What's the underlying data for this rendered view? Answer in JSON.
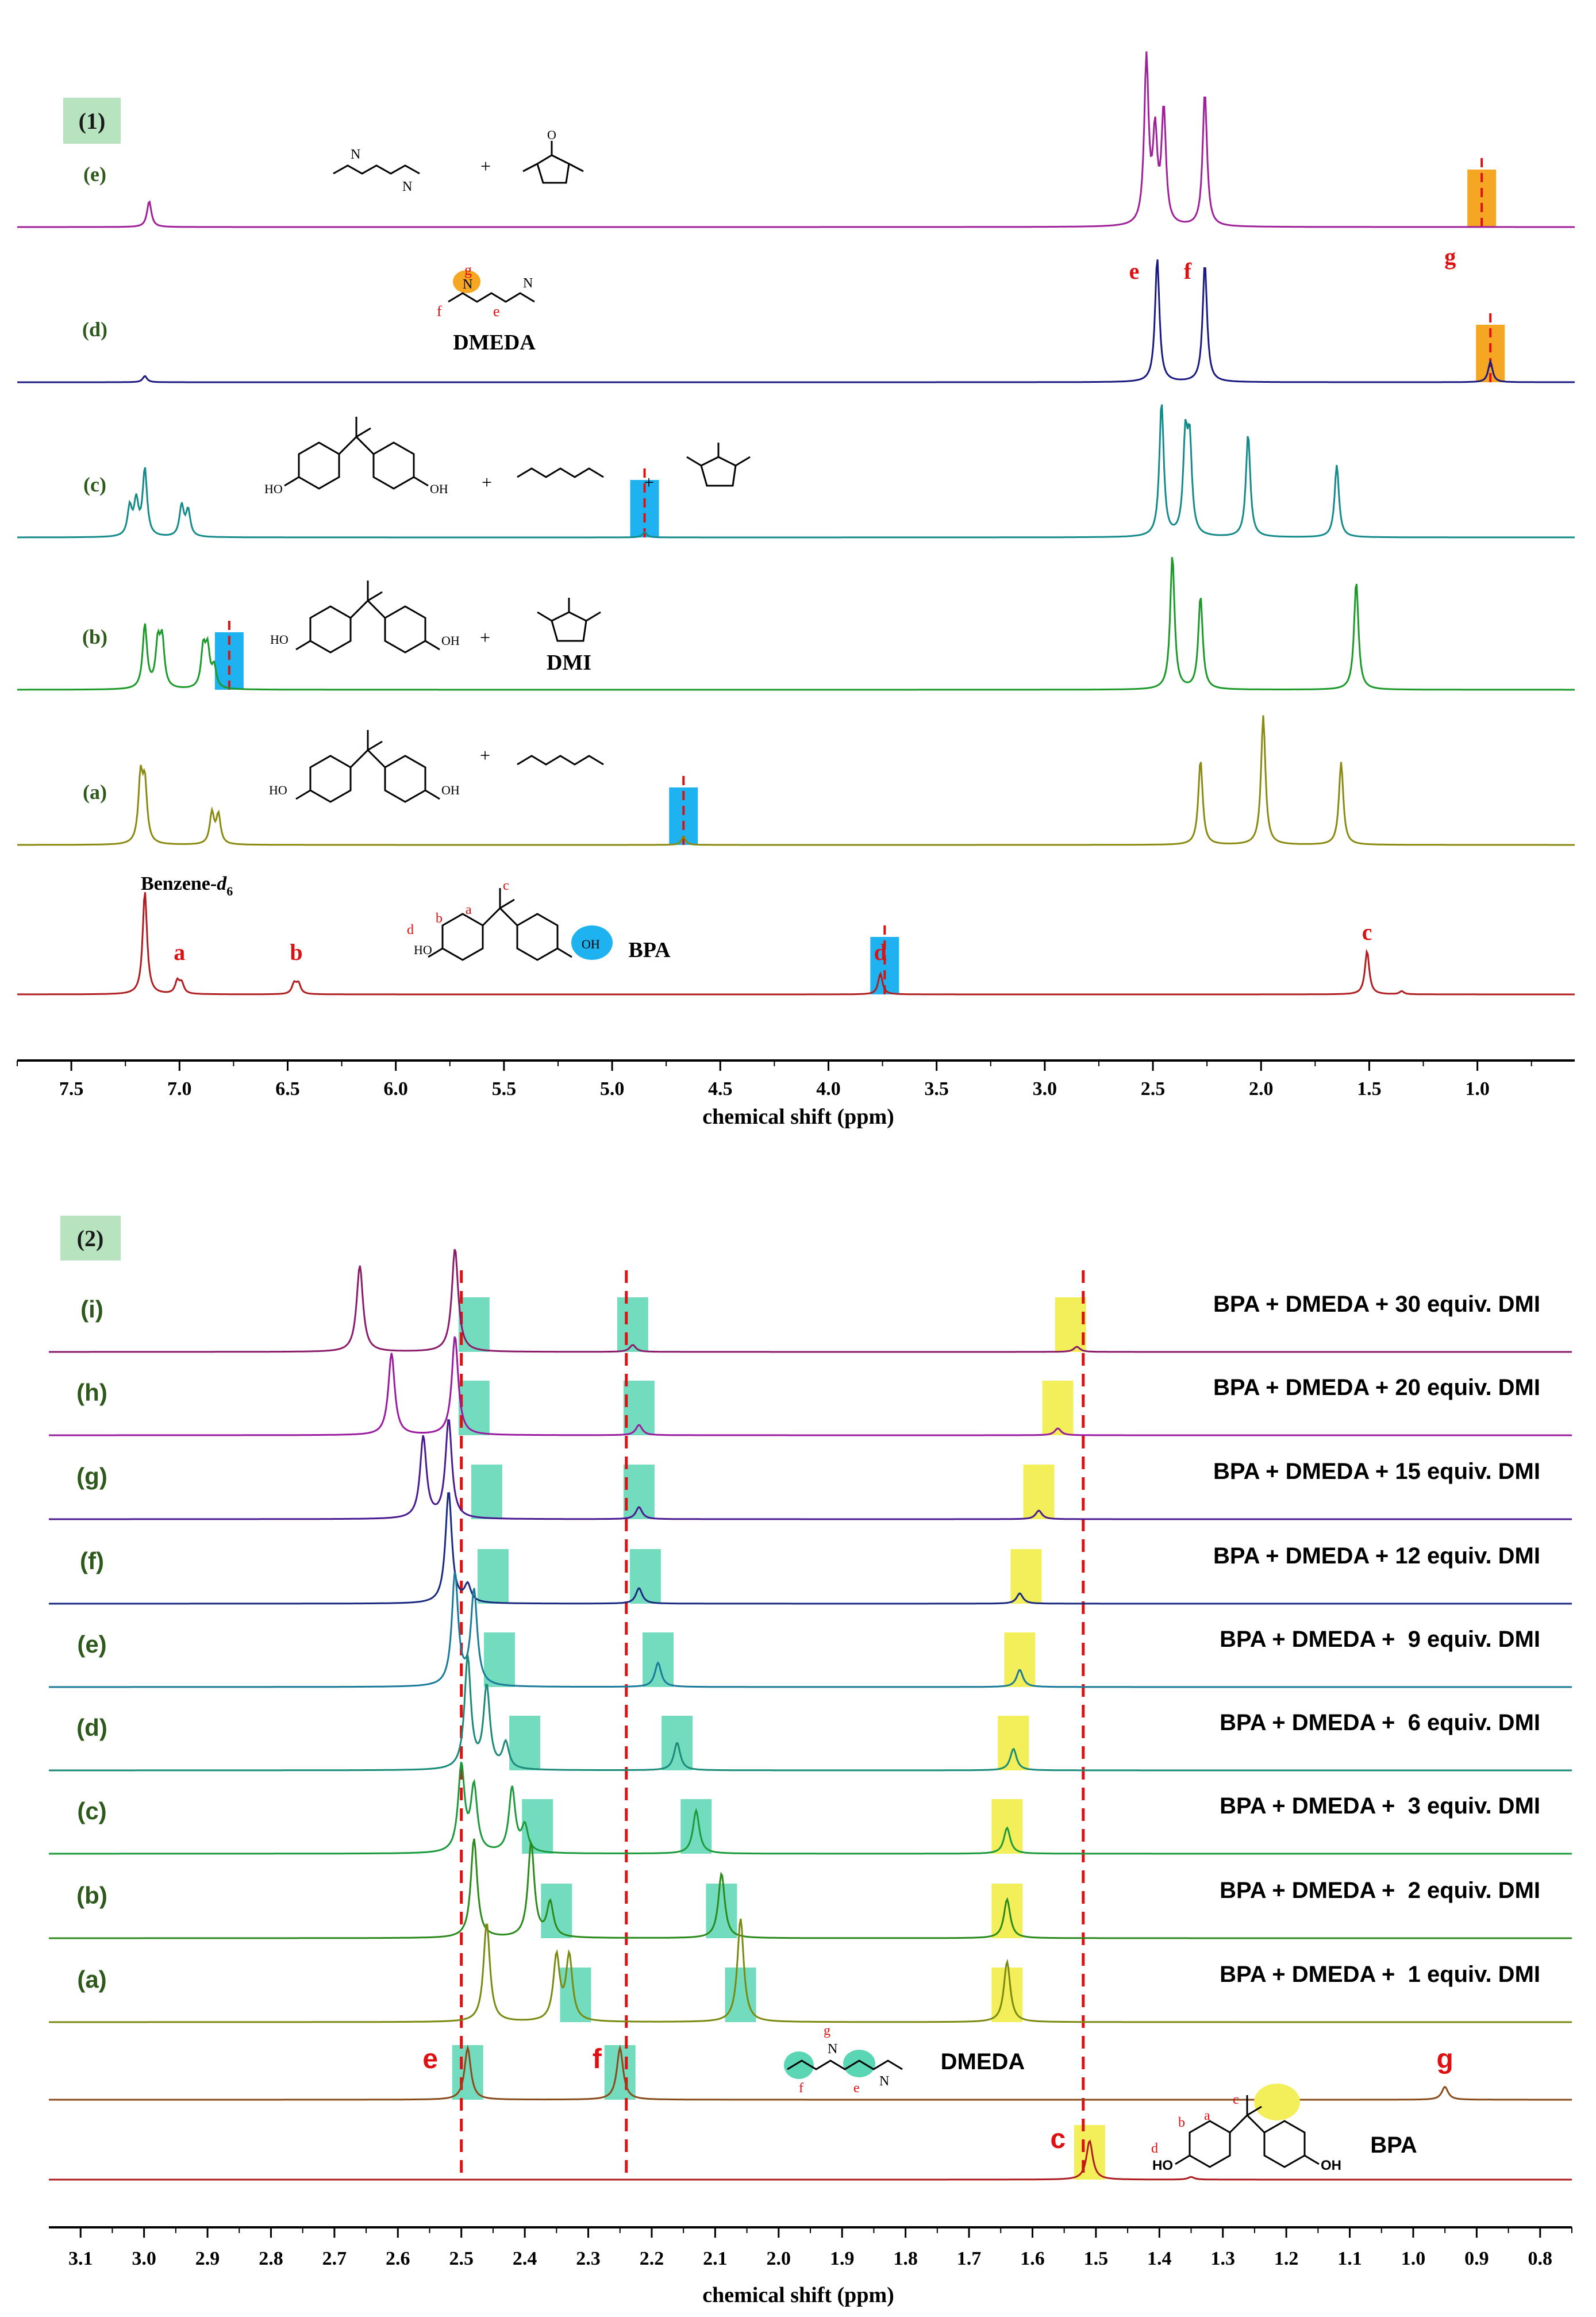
{
  "colors": {
    "spec_e1": "#a0209a",
    "spec_d1": "#1a1a80",
    "spec_c1": "#158a8a",
    "spec_b1": "#1b9a2a",
    "spec_a1": "#8a8a10",
    "spec_bpa": "#b01d20",
    "spec_dmeda": "#8a4a1a",
    "spec_i2": "#8a1a6a",
    "spec_h2": "#9a1aa0",
    "spec_g2": "#4a1a90",
    "spec_f2": "#1a2a80",
    "spec_e2": "#1a7a9a",
    "spec_d2": "#1a8a78",
    "spec_c2": "#1a9a3a",
    "spec_b2": "#2a8a1a",
    "spec_a2": "#7a8a10",
    "label_green": "#2d5a1b",
    "annot_red": "#dd1111",
    "hl_blue": "#1eb2f0",
    "hl_orange": "#f5a623",
    "hl_teal": "#5ad6b4",
    "hl_yellow": "#f2ef5a",
    "panel_badge": "#b7e4bf"
  },
  "panel1": {
    "badge": "(1)",
    "axis_label": "chemical shift (ppm)",
    "molecules": {
      "dmeda_name": "DMEDA",
      "dmi_name": "DMI",
      "bpa_name": "BPA",
      "plus": "+",
      "NH": "H",
      "N": "N",
      "O": "O",
      "HO": "HO",
      "OH": "OH"
    },
    "solvent_label": "Benzene-",
    "solvent_sub": "d",
    "solvent_num": "6",
    "chart_data": {
      "type": "line",
      "title": "",
      "xlabel": "chemical shift (ppm)",
      "ylabel": "",
      "xlim": [
        7.75,
        0.55
      ],
      "x_ticks": [
        7.5,
        7.0,
        6.5,
        6.0,
        5.5,
        5.0,
        4.5,
        4.0,
        3.5,
        3.0,
        2.5,
        2.0,
        1.5,
        1.0
      ],
      "x_tick_labels": [
        "7.5",
        "7.0",
        "6.5",
        "6.0",
        "5.5",
        "5.0",
        "4.5",
        "4.0",
        "3.5",
        "3.0",
        "2.5",
        "2.0",
        "1.5",
        "1.0"
      ],
      "series": [
        {
          "name": "(e)",
          "color_key": "spec_e1",
          "peaks": [
            {
              "ppm": 7.14,
              "h": 0.25
            },
            {
              "ppm": 2.53,
              "h": 1.6
            },
            {
              "ppm": 2.49,
              "h": 0.85
            },
            {
              "ppm": 2.45,
              "h": 1.1
            },
            {
              "ppm": 2.26,
              "h": 1.3
            }
          ]
        },
        {
          "name": "(d)",
          "color_key": "spec_d1",
          "peaks": [
            {
              "ppm": 7.16,
              "h": 0.06
            },
            {
              "ppm": 2.48,
              "h": 1.2
            },
            {
              "ppm": 2.26,
              "h": 1.15
            },
            {
              "ppm": 0.94,
              "h": 0.2
            }
          ]
        },
        {
          "name": "(c)",
          "color_key": "spec_c1",
          "peaks": [
            {
              "ppm": 7.23,
              "h": 0.28
            },
            {
              "ppm": 7.2,
              "h": 0.33
            },
            {
              "ppm": 7.16,
              "h": 0.65
            },
            {
              "ppm": 6.99,
              "h": 0.3
            },
            {
              "ppm": 6.96,
              "h": 0.25
            },
            {
              "ppm": 4.85,
              "h": 0.05
            },
            {
              "ppm": 2.46,
              "h": 1.3
            },
            {
              "ppm": 2.35,
              "h": 0.9
            },
            {
              "ppm": 2.33,
              "h": 0.85
            },
            {
              "ppm": 2.06,
              "h": 1.0
            },
            {
              "ppm": 1.65,
              "h": 0.7
            }
          ]
        },
        {
          "name": "(b)",
          "color_key": "spec_b1",
          "peaks": [
            {
              "ppm": 7.16,
              "h": 0.62
            },
            {
              "ppm": 7.1,
              "h": 0.42
            },
            {
              "ppm": 7.08,
              "h": 0.45
            },
            {
              "ppm": 6.89,
              "h": 0.38
            },
            {
              "ppm": 6.87,
              "h": 0.36
            },
            {
              "ppm": 6.84,
              "h": 0.2
            },
            {
              "ppm": 2.41,
              "h": 1.3
            },
            {
              "ppm": 2.28,
              "h": 0.9
            },
            {
              "ppm": 1.56,
              "h": 1.05
            }
          ]
        },
        {
          "name": "(a)",
          "color_key": "spec_a1",
          "peaks": [
            {
              "ppm": 7.18,
              "h": 0.62
            },
            {
              "ppm": 7.16,
              "h": 0.55
            },
            {
              "ppm": 6.85,
              "h": 0.3
            },
            {
              "ppm": 6.82,
              "h": 0.28
            },
            {
              "ppm": 4.67,
              "h": 0.08
            },
            {
              "ppm": 2.28,
              "h": 0.82
            },
            {
              "ppm": 1.99,
              "h": 1.25
            },
            {
              "ppm": 1.63,
              "h": 0.8
            }
          ]
        },
        {
          "name": "BPA",
          "color_key": "spec_bpa",
          "peaks": [
            {
              "ppm": 7.16,
              "h": 1.0
            },
            {
              "ppm": 7.01,
              "h": 0.12
            },
            {
              "ppm": 6.99,
              "h": 0.1
            },
            {
              "ppm": 6.47,
              "h": 0.1
            },
            {
              "ppm": 6.45,
              "h": 0.1
            },
            {
              "ppm": 3.76,
              "h": 0.2
            },
            {
              "ppm": 1.51,
              "h": 0.42
            },
            {
              "ppm": 1.35,
              "h": 0.03
            }
          ]
        }
      ],
      "annotations": [
        {
          "text": "a",
          "ppm": 7.0,
          "row": "BPA"
        },
        {
          "text": "b",
          "ppm": 6.46,
          "row": "BPA"
        },
        {
          "text": "c",
          "ppm": 1.51,
          "row": "BPA"
        },
        {
          "text": "d",
          "ppm": 3.76,
          "row": "BPA"
        },
        {
          "text": "e",
          "ppm": 2.48,
          "row": "(d)"
        },
        {
          "text": "f",
          "ppm": 2.26,
          "row": "(d)"
        },
        {
          "text": "g",
          "ppm": 0.94,
          "row": "(d)"
        }
      ]
    }
  },
  "panel2": {
    "badge": "(2)",
    "axis_label": "chemical shift (ppm)",
    "molecules": {
      "dmeda_name": "DMEDA",
      "bpa_name": "BPA"
    },
    "chart_data": {
      "type": "line",
      "title": "",
      "xlabel": "chemical shift (ppm)",
      "ylabel": "",
      "xlim": [
        3.15,
        0.75
      ],
      "x_ticks": [
        3.1,
        3.0,
        2.9,
        2.8,
        2.7,
        2.6,
        2.5,
        2.4,
        2.3,
        2.2,
        2.1,
        2.0,
        1.9,
        1.8,
        1.7,
        1.6,
        1.5,
        1.4,
        1.3,
        1.2,
        1.1,
        1.0,
        0.9,
        0.8
      ],
      "x_tick_labels": [
        "3.1",
        "3.0",
        "2.9",
        "2.8",
        "2.7",
        "2.6",
        "2.5",
        "2.4",
        "2.3",
        "2.2",
        "2.1",
        "2.0",
        "1.9",
        "1.8",
        "1.7",
        "1.6",
        "1.5",
        "1.4",
        "1.3",
        "1.2",
        "1.1",
        "1.0",
        "0.9",
        "0.8"
      ],
      "series": [
        {
          "name": "(i)",
          "desc": "BPA + DMEDA + 30 equiv. DMI",
          "color_key": "spec_i2",
          "peaks": [
            {
              "ppm": 2.66,
              "h": 1.0
            },
            {
              "ppm": 2.51,
              "h": 1.2
            },
            {
              "ppm": 2.23,
              "h": 0.08
            },
            {
              "ppm": 1.53,
              "h": 0.06
            }
          ]
        },
        {
          "name": "(h)",
          "desc": "BPA + DMEDA + 20 equiv. DMI",
          "color_key": "spec_h2",
          "peaks": [
            {
              "ppm": 2.61,
              "h": 0.95
            },
            {
              "ppm": 2.51,
              "h": 1.15
            },
            {
              "ppm": 2.22,
              "h": 0.12
            },
            {
              "ppm": 1.56,
              "h": 0.08
            }
          ]
        },
        {
          "name": "(g)",
          "desc": "BPA + DMEDA + 15 equiv. DMI",
          "color_key": "spec_g2",
          "peaks": [
            {
              "ppm": 2.56,
              "h": 0.95
            },
            {
              "ppm": 2.52,
              "h": 1.15
            },
            {
              "ppm": 2.22,
              "h": 0.14
            },
            {
              "ppm": 1.59,
              "h": 0.1
            }
          ]
        },
        {
          "name": "(f)",
          "desc": "BPA + DMEDA + 12 equiv. DMI",
          "color_key": "spec_f2",
          "peaks": [
            {
              "ppm": 2.52,
              "h": 1.3
            },
            {
              "ppm": 2.49,
              "h": 0.2
            },
            {
              "ppm": 2.22,
              "h": 0.18
            },
            {
              "ppm": 1.62,
              "h": 0.12
            }
          ]
        },
        {
          "name": "(e)",
          "desc": "BPA + DMEDA +  9 equiv. DMI",
          "color_key": "spec_e2",
          "peaks": [
            {
              "ppm": 2.51,
              "h": 1.3
            },
            {
              "ppm": 2.48,
              "h": 1.1
            },
            {
              "ppm": 2.19,
              "h": 0.28
            },
            {
              "ppm": 1.62,
              "h": 0.2
            }
          ]
        },
        {
          "name": "(d)",
          "desc": "BPA + DMEDA +  6 equiv. DMI",
          "color_key": "spec_d2",
          "peaks": [
            {
              "ppm": 2.49,
              "h": 1.3
            },
            {
              "ppm": 2.46,
              "h": 0.95
            },
            {
              "ppm": 2.43,
              "h": 0.3
            },
            {
              "ppm": 2.16,
              "h": 0.32
            },
            {
              "ppm": 1.63,
              "h": 0.25
            }
          ]
        },
        {
          "name": "(c)",
          "desc": "BPA + DMEDA +  3 equiv. DMI",
          "color_key": "spec_c2",
          "peaks": [
            {
              "ppm": 2.5,
              "h": 1.0
            },
            {
              "ppm": 2.48,
              "h": 0.75
            },
            {
              "ppm": 2.42,
              "h": 0.75
            },
            {
              "ppm": 2.4,
              "h": 0.3
            },
            {
              "ppm": 2.13,
              "h": 0.5
            },
            {
              "ppm": 1.64,
              "h": 0.3
            }
          ]
        },
        {
          "name": "(b)",
          "desc": "BPA + DMEDA +  2 equiv. DMI",
          "color_key": "spec_b2",
          "peaks": [
            {
              "ppm": 2.48,
              "h": 1.15
            },
            {
              "ppm": 2.39,
              "h": 1.1
            },
            {
              "ppm": 2.36,
              "h": 0.4
            },
            {
              "ppm": 2.09,
              "h": 0.75
            },
            {
              "ppm": 1.64,
              "h": 0.45
            }
          ]
        },
        {
          "name": "(a)",
          "desc": "BPA + DMEDA +  1 equiv. DMI",
          "color_key": "spec_a2",
          "peaks": [
            {
              "ppm": 2.46,
              "h": 1.15
            },
            {
              "ppm": 2.35,
              "h": 0.75
            },
            {
              "ppm": 2.33,
              "h": 0.75
            },
            {
              "ppm": 2.06,
              "h": 1.2
            },
            {
              "ppm": 1.64,
              "h": 0.7
            }
          ]
        },
        {
          "name": "DMEDA",
          "desc": "",
          "color_key": "spec_dmeda",
          "peaks": [
            {
              "ppm": 2.49,
              "h": 0.6
            },
            {
              "ppm": 2.25,
              "h": 0.6
            },
            {
              "ppm": 0.95,
              "h": 0.15
            }
          ]
        },
        {
          "name": "BPA",
          "desc": "",
          "color_key": "spec_bpa",
          "peaks": [
            {
              "ppm": 1.51,
              "h": 0.45
            },
            {
              "ppm": 1.35,
              "h": 0.03
            }
          ]
        }
      ],
      "annotations": [
        {
          "text": "e",
          "ppm": 2.49,
          "row": "DMEDA"
        },
        {
          "text": "f",
          "ppm": 2.25,
          "row": "DMEDA"
        },
        {
          "text": "g",
          "ppm": 0.95,
          "row": "DMEDA"
        },
        {
          "text": "c",
          "ppm": 1.51,
          "row": "BPA"
        }
      ],
      "reference_lines_ppm": [
        2.5,
        2.24,
        1.52
      ]
    }
  }
}
